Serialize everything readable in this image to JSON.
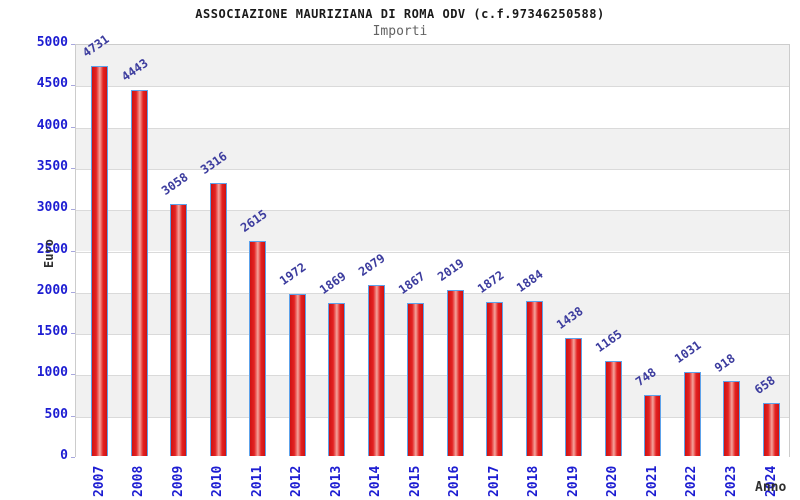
{
  "chart_data": {
    "type": "bar",
    "title": "ASSOCIAZIONE MAURIZIANA DI ROMA ODV (c.f.97346250588)",
    "subtitle": "Importi",
    "xlabel": "Anno",
    "ylabel": "Euro",
    "categories": [
      "2007",
      "2008",
      "2009",
      "2010",
      "2011",
      "2012",
      "2013",
      "2014",
      "2015",
      "2016",
      "2017",
      "2018",
      "2019",
      "2020",
      "2021",
      "2022",
      "2023",
      "2024"
    ],
    "values": [
      4731,
      4443,
      3058,
      3316,
      2615,
      1972,
      1869,
      2079,
      1867,
      2019,
      1872,
      1884,
      1438,
      1165,
      748,
      1031,
      918,
      658
    ],
    "ylim": [
      0,
      5000
    ],
    "y_ticks": [
      0,
      500,
      1000,
      1500,
      2000,
      2500,
      3000,
      3500,
      4000,
      4500,
      5000
    ],
    "grid": true,
    "legend": "none",
    "bar_value_labels": true,
    "alternating_bands": true
  },
  "colors": {
    "bar_fill": "#e32222",
    "bar_dark": "#cf1212",
    "bar_highlight": "#f4a39b",
    "bar_border": "#5da2ea",
    "axis_text": "#1d1dd2",
    "value_text": "#3c3c9e",
    "band_gray": "#f1f1f1",
    "band_white": "#ffffff",
    "grid_line": "#dadada",
    "plot_border": "#cccccc",
    "tick_mark": "#a7a7dd",
    "title_text": "#1a1a1a",
    "subtitle_text": "#636363",
    "axis_title_text": "#2f2f2f"
  }
}
